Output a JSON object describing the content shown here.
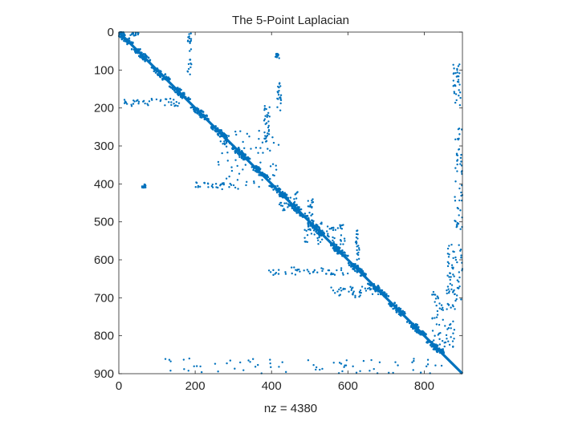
{
  "chart_data": {
    "type": "scatter",
    "subtype": "sparsity-pattern (spy plot)",
    "title": "The 5-Point Laplacian",
    "xlabel": "nz = 4380",
    "ylabel": "",
    "xlim": [
      0,
      900
    ],
    "ylim": [
      900,
      0
    ],
    "y_reversed": true,
    "aspect": "equal",
    "grid": false,
    "box": true,
    "nz": 4380,
    "matrix_size": 900,
    "marker_color": "#0072BD",
    "xticks": [
      0,
      200,
      400,
      600,
      800
    ],
    "yticks": [
      0,
      100,
      200,
      300,
      400,
      500,
      600,
      700,
      800,
      900
    ],
    "diagonal": {
      "from": 0,
      "to": 900,
      "note": "dense main diagonal band"
    },
    "block_centers": [
      15,
      60,
      110,
      160,
      215,
      265,
      320,
      370,
      420,
      470,
      520,
      575,
      625,
      680,
      730,
      780,
      830
    ],
    "off_diagonal_clusters": [
      {
        "x": [
          0,
          60
        ],
        "y": [
          0,
          10
        ]
      },
      {
        "x": [
          180,
          190
        ],
        "y": [
          0,
          120
        ]
      },
      {
        "x": [
          275,
          285
        ],
        "y": [
          260,
          310
        ]
      },
      {
        "x": [
          380,
          395
        ],
        "y": [
          190,
          320
        ]
      },
      {
        "x": [
          410,
          420
        ],
        "y": [
          55,
          70
        ]
      },
      {
        "x": [
          415,
          425
        ],
        "y": [
          130,
          210
        ]
      },
      {
        "x": [
          0,
          160
        ],
        "y": [
          175,
          195
        ]
      },
      {
        "x": [
          60,
          70
        ],
        "y": [
          400,
          410
        ]
      },
      {
        "x": [
          200,
          300
        ],
        "y": [
          395,
          410
        ]
      },
      {
        "x": [
          260,
          420
        ],
        "y": [
          255,
          415
        ]
      },
      {
        "x": [
          420,
          470
        ],
        "y": [
          420,
          470
        ]
      },
      {
        "x": [
          495,
          510
        ],
        "y": [
          440,
          525
        ]
      },
      {
        "x": [
          485,
          600
        ],
        "y": [
          500,
          560
        ]
      },
      {
        "x": [
          620,
          630
        ],
        "y": [
          520,
          600
        ]
      },
      {
        "x": [
          390,
          600
        ],
        "y": [
          620,
          640
        ]
      },
      {
        "x": [
          550,
          680
        ],
        "y": [
          670,
          700
        ]
      },
      {
        "x": [
          820,
          880
        ],
        "y": [
          680,
          840
        ]
      },
      {
        "x": [
          875,
          895
        ],
        "y": [
          80,
          200
        ]
      },
      {
        "x": [
          880,
          900
        ],
        "y": [
          250,
          520
        ]
      },
      {
        "x": [
          860,
          900
        ],
        "y": [
          560,
          730
        ]
      },
      {
        "x": [
          100,
          860
        ],
        "y": [
          860,
          900
        ]
      }
    ]
  }
}
